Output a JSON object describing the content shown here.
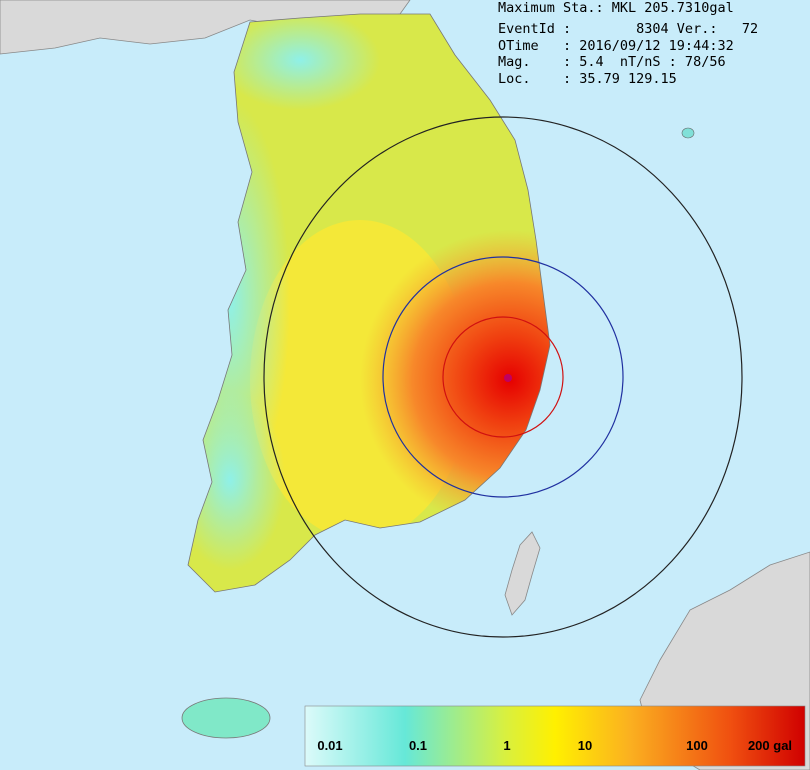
{
  "header": {
    "lines": [
      "Maximum Sta.: MKL 205.7310gal",
      "EventId :        8304 Ver.:   72",
      "OTime   : 2016/09/12 19:44:32",
      "Mag.    : 5.4  nT/nS : 78/56",
      "Loc.    : 35.79 129.15"
    ]
  },
  "legend": {
    "labels": [
      "0.01",
      "0.1",
      "1",
      "10",
      "100",
      "200 gal"
    ]
  }
}
